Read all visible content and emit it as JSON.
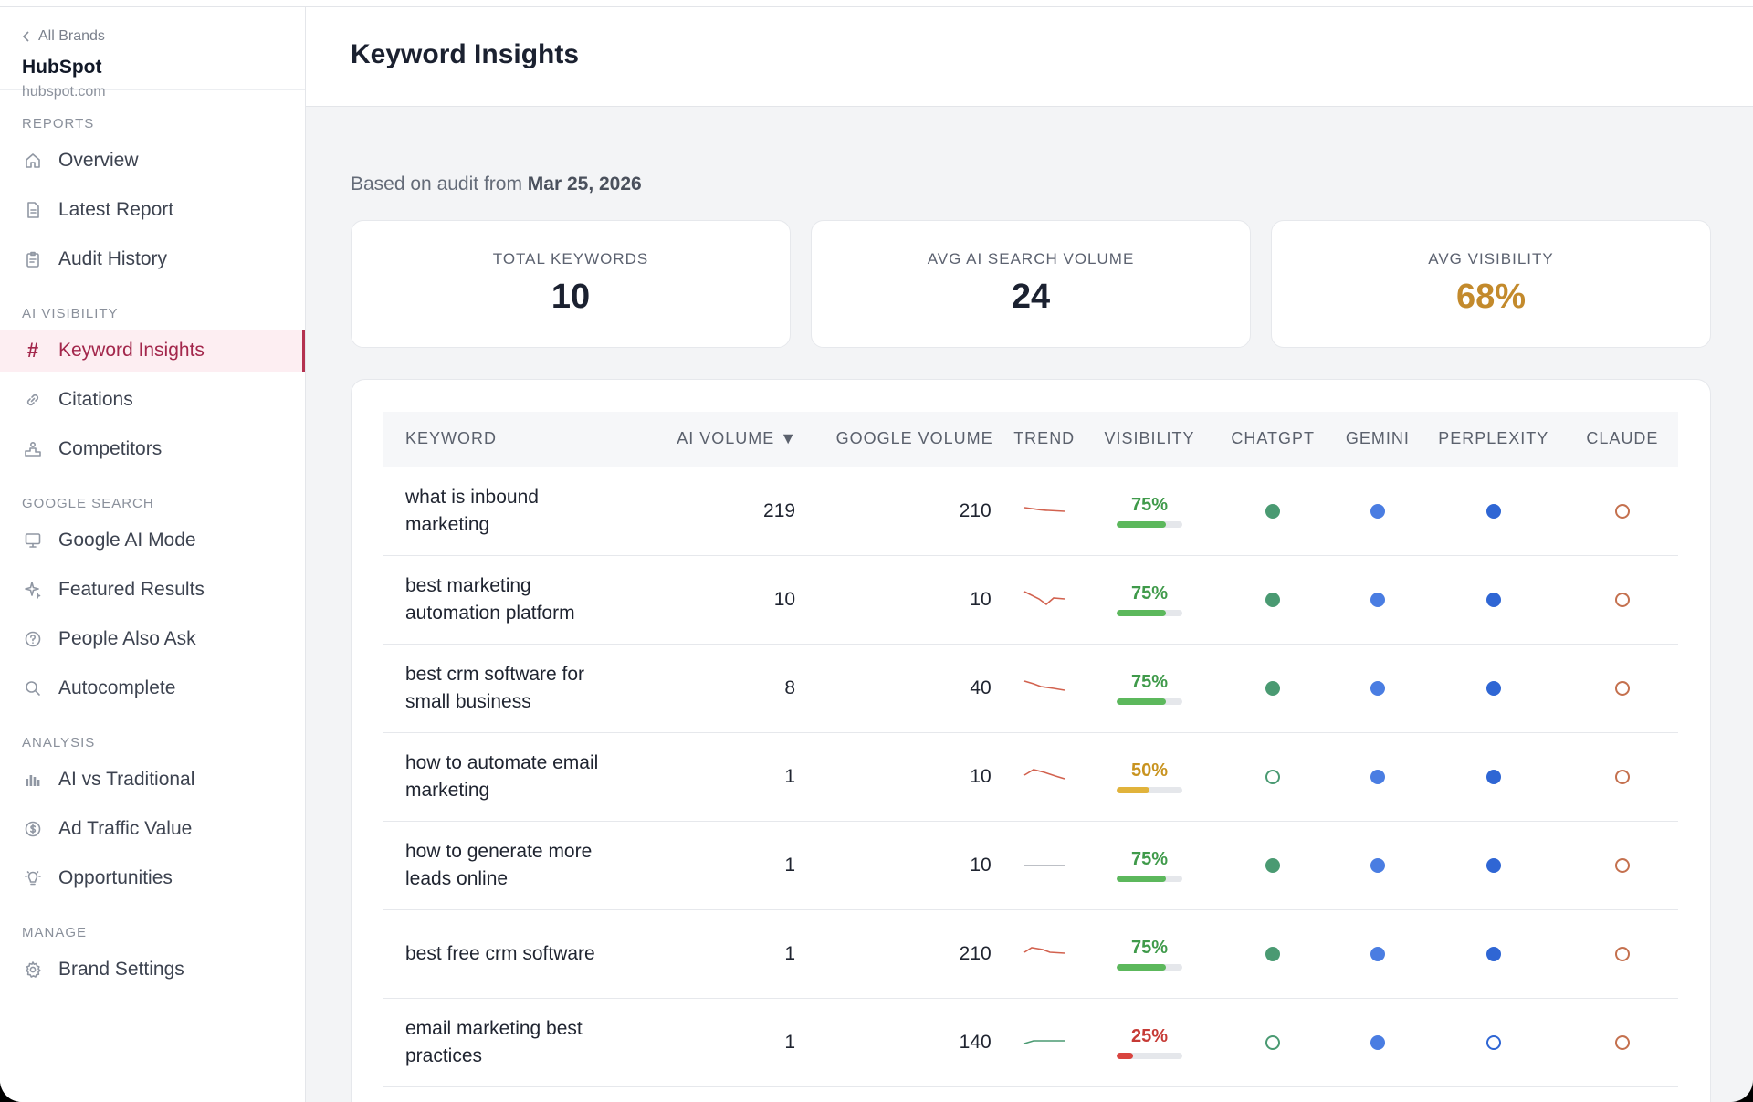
{
  "sidebar": {
    "back_label": "All Brands",
    "brand_name": "HubSpot",
    "brand_url": "hubspot.com",
    "sections": [
      {
        "label": "REPORTS",
        "items": [
          {
            "label": "Overview",
            "icon": "home-icon"
          },
          {
            "label": "Latest Report",
            "icon": "document-icon"
          },
          {
            "label": "Audit History",
            "icon": "clipboard-icon"
          }
        ]
      },
      {
        "label": "AI VISIBILITY",
        "items": [
          {
            "label": "Keyword Insights",
            "icon": "hash-icon",
            "active": true
          },
          {
            "label": "Citations",
            "icon": "link-icon"
          },
          {
            "label": "Competitors",
            "icon": "podium-icon"
          }
        ]
      },
      {
        "label": "GOOGLE SEARCH",
        "items": [
          {
            "label": "Google AI Mode",
            "icon": "monitor-icon"
          },
          {
            "label": "Featured Results",
            "icon": "sparkle-icon"
          },
          {
            "label": "People Also Ask",
            "icon": "question-icon"
          },
          {
            "label": "Autocomplete",
            "icon": "search-icon"
          }
        ]
      },
      {
        "label": "ANALYSIS",
        "items": [
          {
            "label": "AI vs Traditional",
            "icon": "bar-chart-icon"
          },
          {
            "label": "Ad Traffic Value",
            "icon": "dollar-icon"
          },
          {
            "label": "Opportunities",
            "icon": "lightbulb-icon"
          }
        ]
      },
      {
        "label": "MANAGE",
        "items": [
          {
            "label": "Brand Settings",
            "icon": "gear-icon"
          }
        ]
      }
    ]
  },
  "header": {
    "title": "Keyword Insights"
  },
  "audit": {
    "prefix": "Based on audit from",
    "date": "Mar 25, 2026"
  },
  "stats": [
    {
      "label": "TOTAL KEYWORDS",
      "value": "10"
    },
    {
      "label": "AVG AI SEARCH VOLUME",
      "value": "24"
    },
    {
      "label": "AVG VISIBILITY",
      "value": "68%",
      "color": "#c38a2c"
    }
  ],
  "table": {
    "columns": [
      "KEYWORD",
      "AI VOLUME ▼",
      "GOOGLE VOLUME",
      "TREND",
      "VISIBILITY",
      "CHATGPT",
      "GEMINI",
      "PERPLEXITY",
      "CLAUDE"
    ],
    "rows": [
      {
        "keyword": "what is inbound marketing",
        "ai_volume": "219",
        "google_volume": "210",
        "trend": "slight-down",
        "visibility": "75%",
        "visibility_value": 0.75,
        "chatgpt": true,
        "gemini": true,
        "perplexity": true,
        "claude": false
      },
      {
        "keyword": "best marketing automation platform",
        "ai_volume": "10",
        "google_volume": "10",
        "trend": "dip",
        "visibility": "75%",
        "visibility_value": 0.75,
        "chatgpt": true,
        "gemini": true,
        "perplexity": true,
        "claude": false
      },
      {
        "keyword": "best crm software for small business",
        "ai_volume": "8",
        "google_volume": "40",
        "trend": "down",
        "visibility": "75%",
        "visibility_value": 0.75,
        "chatgpt": true,
        "gemini": true,
        "perplexity": true,
        "claude": false
      },
      {
        "keyword": "how to automate email marketing",
        "ai_volume": "1",
        "google_volume": "10",
        "trend": "hump",
        "visibility": "50%",
        "visibility_value": 0.5,
        "chatgpt": false,
        "gemini": true,
        "perplexity": true,
        "claude": false
      },
      {
        "keyword": "how to generate more leads online",
        "ai_volume": "1",
        "google_volume": "10",
        "trend": "flat",
        "visibility": "75%",
        "visibility_value": 0.75,
        "chatgpt": true,
        "gemini": true,
        "perplexity": true,
        "claude": false
      },
      {
        "keyword": "best free crm software",
        "ai_volume": "1",
        "google_volume": "210",
        "trend": "hump-small",
        "visibility": "75%",
        "visibility_value": 0.75,
        "chatgpt": true,
        "gemini": true,
        "perplexity": true,
        "claude": false
      },
      {
        "keyword": "email marketing best practices",
        "ai_volume": "1",
        "google_volume": "140",
        "trend": "up",
        "visibility": "25%",
        "visibility_value": 0.25,
        "chatgpt": false,
        "gemini": true,
        "perplexity": false,
        "claude": false
      }
    ]
  },
  "colors": {
    "accent": "#a3274c",
    "green_high": "#5cb85c",
    "amber_mid": "#e1b33b",
    "red_low": "#d9443f",
    "chatgpt": "#4a9a72",
    "gemini": "#4a7de2",
    "perplexity": "#2f66d4",
    "claude": "#c4704e",
    "trend_down": "#d2624f",
    "trend_up": "#4a9a72",
    "trend_flat": "#a7abb3"
  }
}
